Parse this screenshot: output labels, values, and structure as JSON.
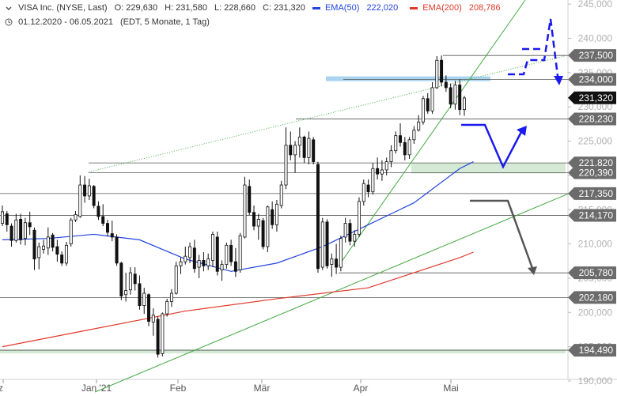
{
  "header": {
    "instrument": "VISA Inc. (NYSE, Last)",
    "open": "O: 229,630",
    "high": "H: 231,580",
    "low": "L: 228,660",
    "close": "C: 231,320",
    "ema50_label": "EMA(50)",
    "ema50_value": "222,020",
    "ema200_label": "EMA(200)",
    "ema200_value": "208,786",
    "date_range": "01.12.2020 - 06.05.2021",
    "info": "(EDT, 5 Monate, 1 Tag)"
  },
  "colors": {
    "ema50": "#2244dd",
    "ema200": "#e03a2a",
    "trendline": "#44aa44",
    "arrow_blue": "#1a1aee",
    "arrow_gray": "#555555",
    "zone_blue": "#a8d4f0",
    "zone_green": "#cfe8cf",
    "candle": "#111111",
    "price_tag_gray": "#6b6b6b",
    "price_tag_current": "#111111"
  },
  "chart_data": {
    "type": "candlestick",
    "ylim": [
      190,
      246
    ],
    "y_ticks": [
      190,
      195,
      200,
      205,
      210,
      215,
      220,
      225,
      230,
      235,
      240,
      245
    ],
    "x_labels": [
      "ez",
      "Jan '21",
      "Feb",
      "Mär",
      "Apr",
      "Mai"
    ],
    "candles": [
      [
        213.0,
        215.6,
        212.6,
        214.7
      ],
      [
        214.4,
        214.8,
        211.8,
        212.8
      ],
      [
        212.6,
        213.0,
        209.6,
        210.5
      ],
      [
        210.5,
        214.4,
        210.2,
        213.5
      ],
      [
        213.6,
        214.4,
        209.9,
        210.6
      ],
      [
        210.8,
        213.8,
        209.8,
        213.1
      ],
      [
        213.1,
        214.7,
        211.3,
        212.5
      ],
      [
        212.0,
        212.4,
        206.2,
        207.8
      ],
      [
        208.0,
        210.2,
        206.3,
        209.6
      ],
      [
        209.2,
        210.6,
        208.6,
        209.7
      ],
      [
        209.4,
        212.4,
        208.4,
        211.0
      ],
      [
        211.3,
        211.6,
        208.9,
        209.5
      ],
      [
        209.6,
        210.6,
        207.4,
        208.5
      ],
      [
        208.4,
        208.9,
        206.8,
        207.2
      ],
      [
        207.2,
        210.3,
        206.8,
        209.8
      ],
      [
        210.0,
        213.8,
        209.6,
        213.5
      ],
      [
        213.5,
        214.8,
        213.2,
        214.3
      ],
      [
        214.0,
        220.0,
        213.8,
        218.6
      ],
      [
        218.6,
        219.9,
        216.0,
        217.0
      ],
      [
        217.0,
        219.5,
        216.4,
        218.5
      ],
      [
        218.4,
        218.6,
        215.2,
        215.6
      ],
      [
        215.5,
        216.2,
        213.5,
        214.0
      ],
      [
        214.0,
        215.8,
        212.6,
        213.0
      ],
      [
        213.0,
        213.5,
        211.1,
        211.7
      ],
      [
        211.5,
        213.4,
        210.4,
        211.0
      ],
      [
        211.0,
        211.4,
        206.8,
        207.2
      ],
      [
        207.2,
        207.4,
        201.8,
        202.4
      ],
      [
        202.6,
        205.8,
        201.6,
        203.2
      ],
      [
        203.3,
        206.6,
        202.6,
        205.8
      ],
      [
        205.6,
        206.6,
        203.2,
        204.2
      ],
      [
        204.2,
        205.4,
        200.4,
        201.0
      ],
      [
        201.0,
        203.6,
        199.8,
        202.8
      ],
      [
        202.6,
        202.8,
        198.0,
        198.7
      ],
      [
        198.6,
        200.6,
        196.6,
        199.6
      ],
      [
        199.0,
        199.4,
        193.4,
        193.9
      ],
      [
        194.0,
        200.0,
        193.6,
        199.8
      ],
      [
        199.8,
        202.0,
        199.4,
        201.6
      ],
      [
        201.6,
        203.4,
        200.8,
        202.8
      ],
      [
        202.8,
        207.4,
        202.6,
        206.8
      ],
      [
        206.8,
        208.0,
        205.6,
        207.4
      ],
      [
        207.4,
        209.6,
        207.0,
        208.2
      ],
      [
        208.0,
        210.2,
        207.2,
        209.6
      ],
      [
        209.4,
        210.6,
        205.8,
        206.4
      ],
      [
        206.6,
        208.4,
        205.0,
        207.6
      ],
      [
        207.6,
        208.8,
        206.0,
        206.8
      ],
      [
        206.8,
        208.6,
        206.2,
        207.8
      ],
      [
        207.6,
        211.8,
        206.6,
        211.4
      ],
      [
        211.0,
        211.8,
        205.4,
        206.0
      ],
      [
        206.2,
        207.6,
        204.6,
        207.0
      ],
      [
        207.0,
        210.2,
        206.4,
        209.8
      ],
      [
        209.8,
        210.6,
        206.8,
        207.4
      ],
      [
        207.4,
        209.4,
        205.2,
        206.0
      ],
      [
        206.2,
        211.6,
        205.8,
        211.2
      ],
      [
        211.0,
        219.8,
        210.8,
        218.6
      ],
      [
        218.4,
        219.4,
        214.2,
        214.6
      ],
      [
        214.6,
        215.6,
        212.0,
        212.6
      ],
      [
        212.6,
        214.4,
        210.6,
        213.6
      ],
      [
        213.4,
        213.8,
        209.2,
        209.6
      ],
      [
        209.6,
        215.6,
        208.8,
        215.4
      ],
      [
        215.0,
        216.2,
        212.2,
        212.8
      ],
      [
        212.8,
        216.4,
        211.8,
        215.8
      ],
      [
        215.6,
        219.2,
        215.2,
        218.6
      ],
      [
        218.6,
        227.0,
        218.0,
        224.4
      ],
      [
        224.4,
        226.4,
        222.2,
        223.0
      ],
      [
        223.0,
        225.0,
        220.4,
        224.4
      ],
      [
        224.4,
        227.0,
        222.6,
        225.6
      ],
      [
        225.6,
        225.8,
        221.8,
        222.6
      ],
      [
        222.6,
        226.4,
        221.6,
        225.4
      ],
      [
        225.2,
        225.6,
        221.6,
        222.0
      ],
      [
        221.6,
        222.0,
        205.8,
        206.4
      ],
      [
        206.6,
        213.8,
        206.2,
        213.2
      ],
      [
        213.2,
        213.6,
        206.4,
        206.8
      ],
      [
        207.0,
        208.6,
        205.2,
        207.8
      ],
      [
        207.8,
        210.0,
        205.6,
        206.6
      ],
      [
        206.6,
        211.2,
        206.0,
        210.8
      ],
      [
        211.0,
        213.8,
        210.2,
        213.0
      ],
      [
        213.0,
        213.6,
        209.8,
        210.4
      ],
      [
        210.4,
        212.0,
        209.6,
        211.4
      ],
      [
        211.4,
        216.8,
        211.0,
        216.2
      ],
      [
        216.2,
        219.4,
        215.6,
        218.8
      ],
      [
        218.6,
        219.4,
        216.8,
        217.6
      ],
      [
        217.6,
        221.8,
        217.2,
        221.0
      ],
      [
        221.0,
        222.6,
        219.4,
        220.2
      ],
      [
        220.2,
        222.2,
        219.2,
        220.8
      ],
      [
        220.8,
        222.6,
        220.0,
        222.0
      ],
      [
        222.0,
        224.4,
        221.2,
        223.6
      ],
      [
        223.6,
        226.4,
        223.2,
        225.8
      ],
      [
        225.8,
        227.6,
        224.2,
        224.8
      ],
      [
        224.8,
        225.6,
        222.2,
        223.0
      ],
      [
        223.0,
        225.6,
        222.4,
        225.2
      ],
      [
        225.2,
        227.2,
        224.6,
        226.6
      ],
      [
        226.6,
        228.8,
        226.4,
        227.8
      ],
      [
        227.8,
        231.6,
        227.4,
        231.2
      ],
      [
        231.2,
        232.0,
        229.0,
        229.4
      ],
      [
        229.4,
        233.6,
        229.0,
        232.8
      ],
      [
        232.8,
        237.4,
        232.6,
        236.8
      ],
      [
        236.8,
        237.5,
        233.0,
        233.6
      ],
      [
        233.6,
        234.6,
        232.2,
        232.8
      ],
      [
        232.8,
        233.4,
        229.8,
        230.4
      ],
      [
        230.4,
        233.8,
        229.6,
        233.2
      ],
      [
        233.2,
        234.0,
        228.8,
        229.6
      ],
      [
        229.6,
        231.6,
        228.7,
        231.3
      ]
    ],
    "ema50": [
      [
        0,
        210.6
      ],
      [
        10,
        210.8
      ],
      [
        20,
        211.4
      ],
      [
        30,
        210.6
      ],
      [
        40,
        207.8
      ],
      [
        50,
        206.0
      ],
      [
        60,
        207.2
      ],
      [
        70,
        209.6
      ],
      [
        80,
        212.8
      ],
      [
        90,
        216.0
      ],
      [
        100,
        221.0
      ],
      [
        103,
        222.0
      ]
    ],
    "ema200": [
      [
        0,
        195.0
      ],
      [
        20,
        197.6
      ],
      [
        40,
        200.2
      ],
      [
        60,
        202.0
      ],
      [
        80,
        203.6
      ],
      [
        100,
        208.0
      ],
      [
        103,
        208.8
      ]
    ],
    "horizontal_levels": [
      {
        "value": 237.5,
        "label": "237,500"
      },
      {
        "value": 234.0,
        "label": "234,000"
      },
      {
        "value": 228.23,
        "label": "228,230"
      },
      {
        "value": 221.82,
        "label": "221,820"
      },
      {
        "value": 220.39,
        "label": "220,390"
      },
      {
        "value": 217.35,
        "label": "217,350"
      },
      {
        "value": 214.17,
        "label": "214,170"
      },
      {
        "value": 205.78,
        "label": "205,780"
      },
      {
        "value": 202.18,
        "label": "202,180"
      },
      {
        "value": 194.49,
        "label": "194,490"
      }
    ],
    "current_price": {
      "value": 231.32,
      "label": "231,320"
    }
  }
}
